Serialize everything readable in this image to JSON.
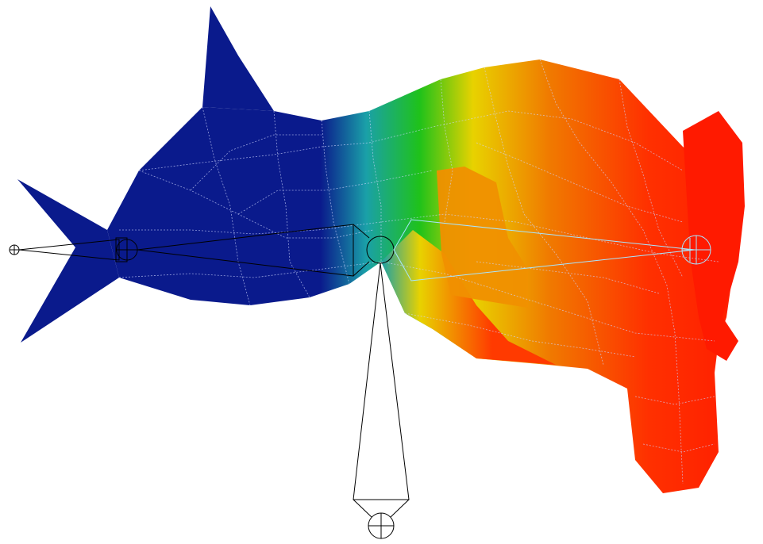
{
  "scene": {
    "subject": "shark-head-mesh",
    "colors": {
      "background": "#ffffff",
      "weight_low": "#0a1a8c",
      "weight_mid_low": "#1aa0a8",
      "weight_mid": "#1fc21a",
      "weight_mid_high": "#e8d200",
      "weight_high": "#ff1a00",
      "wire": "#cfd6ff",
      "bone": "#000000",
      "bone_selected": "#a8e6ff"
    }
  }
}
